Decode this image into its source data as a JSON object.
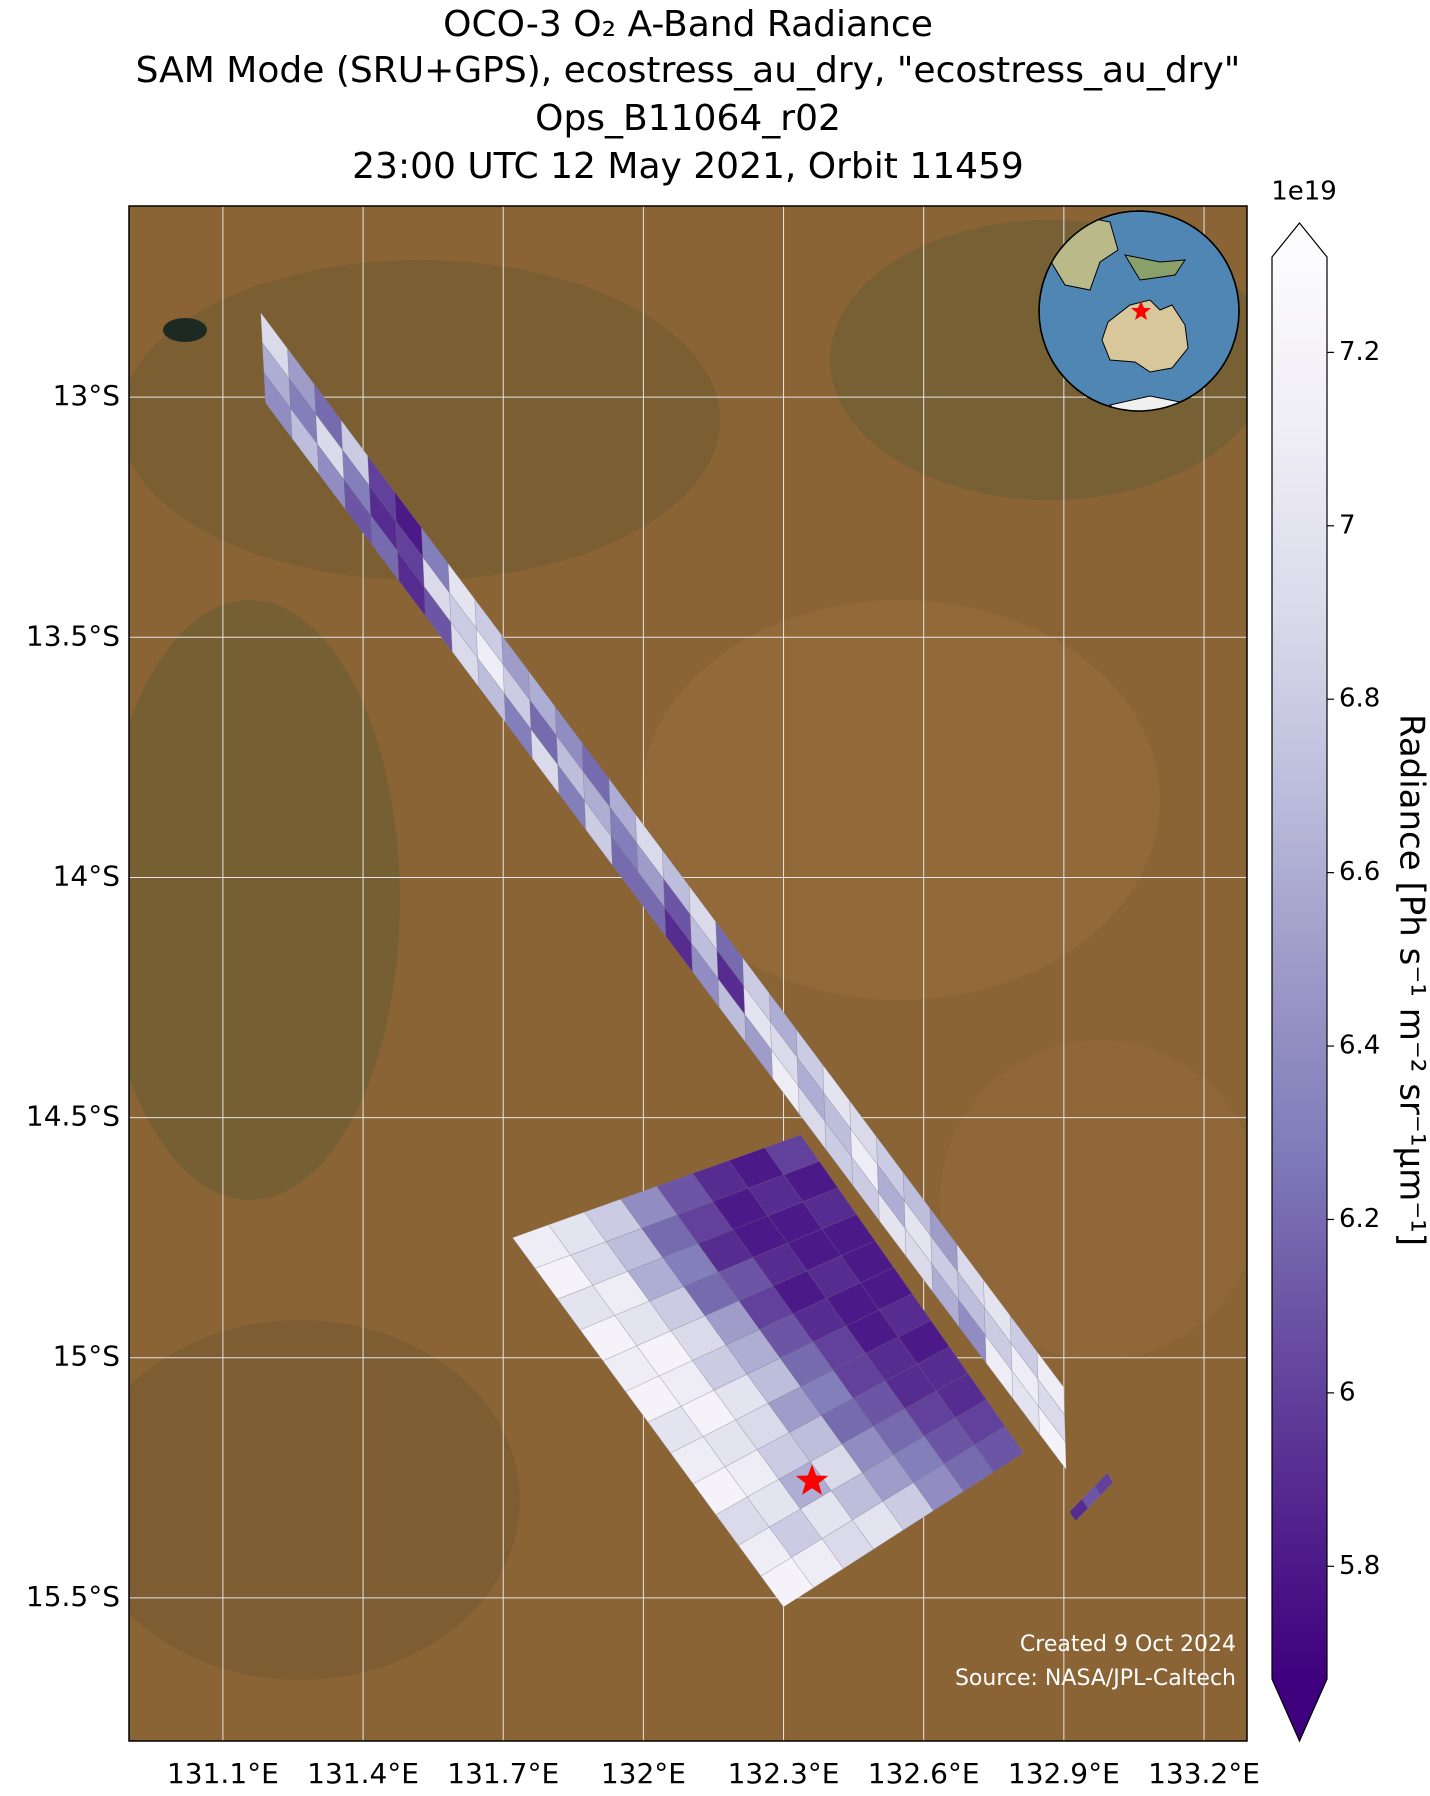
{
  "chart_data": {
    "type": "map",
    "title": [
      "OCO-3 O₂ A-Band Radiance",
      "SAM Mode (SRU+GPS), ecostress_au_dry, \"ecostress_au_dry\"",
      "Ops_B11064_r02",
      "23:00 UTC 12 May 2021, Orbit 11459"
    ],
    "xlim": [
      130.899,
      133.292
    ],
    "ylim": [
      -15.798,
      -12.602
    ],
    "xticks": [
      {
        "value": 131.1,
        "label": "131.1°E"
      },
      {
        "value": 131.4,
        "label": "131.4°E"
      },
      {
        "value": 131.7,
        "label": "131.7°E"
      },
      {
        "value": 132.0,
        "label": "132°E"
      },
      {
        "value": 132.3,
        "label": "132.3°E"
      },
      {
        "value": 132.6,
        "label": "132.6°E"
      },
      {
        "value": 132.9,
        "label": "132.9°E"
      },
      {
        "value": 133.2,
        "label": "133.2°E"
      }
    ],
    "yticks": [
      {
        "value": -13,
        "label": "13°S"
      },
      {
        "value": -13.5,
        "label": "13.5°S"
      },
      {
        "value": -14,
        "label": "14°S"
      },
      {
        "value": -14.5,
        "label": "14.5°S"
      },
      {
        "value": -15,
        "label": "15°S"
      },
      {
        "value": -15.5,
        "label": "15.5°S"
      }
    ],
    "grid": true,
    "colormap": [
      "#3f007d",
      "#54278f",
      "#6a51a3",
      "#807dba",
      "#9e9ac8",
      "#bcbddc",
      "#dadaeb",
      "#efedf5",
      "#fcfbfd"
    ],
    "clim": [
      5.67,
      7.31
    ],
    "cticks": [
      5.8,
      6.0,
      6.2,
      6.4,
      6.6,
      6.8,
      7.0,
      7.2
    ],
    "colorbar_offset": "1e19",
    "colorbar_label": "Radiance [Ph s⁻¹ m⁻² sr⁻¹μm⁻¹]",
    "target": [
      132.361,
      -15.257
    ],
    "target_color": "#ff0000",
    "swaths": [
      {
        "corners": [
          [
            131.181,
            -12.824
          ],
          [
            131.191,
            -13.012
          ],
          [
            132.905,
            -15.233
          ],
          [
            132.9,
            -15.062
          ]
        ],
        "values": [
          [
            6.9,
            6.6,
            6.4
          ],
          [
            6.5,
            6.3,
            6.7
          ],
          [
            6.2,
            6.9,
            6.4
          ],
          [
            6.8,
            6.3,
            6.1
          ],
          [
            6.0,
            5.9,
            6.2
          ],
          [
            5.8,
            6.0,
            5.9
          ],
          [
            6.3,
            6.9,
            6.1
          ],
          [
            7.0,
            6.8,
            6.9
          ],
          [
            6.8,
            7.1,
            6.7
          ],
          [
            6.5,
            6.8,
            6.3
          ],
          [
            6.6,
            6.2,
            6.9
          ],
          [
            6.4,
            6.7,
            6.3
          ],
          [
            6.2,
            6.6,
            6.8
          ],
          [
            6.6,
            6.3,
            6.2
          ],
          [
            6.9,
            6.5,
            6.2
          ],
          [
            6.7,
            6.1,
            5.9
          ],
          [
            6.9,
            6.7,
            6.4
          ],
          [
            6.2,
            5.9,
            6.7
          ],
          [
            6.8,
            7.0,
            6.5
          ],
          [
            6.6,
            6.9,
            7.1
          ],
          [
            6.8,
            6.6,
            6.9
          ],
          [
            7.0,
            6.7,
            6.8
          ],
          [
            6.9,
            7.1,
            6.8
          ],
          [
            6.8,
            6.6,
            7.0
          ],
          [
            6.7,
            7.0,
            6.9
          ],
          [
            6.5,
            6.8,
            6.6
          ],
          [
            6.9,
            6.7,
            6.4
          ],
          [
            7.0,
            6.8,
            7.1
          ],
          [
            6.8,
            7.1,
            7.0
          ],
          [
            7.1,
            6.9,
            7.2
          ]
        ]
      },
      {
        "corners": [
          [
            131.72,
            -14.75
          ],
          [
            132.337,
            -14.536
          ],
          [
            132.814,
            -15.198
          ],
          [
            132.3,
            -15.519
          ]
        ],
        "values": [
          [
            7.1,
            7.0,
            6.8,
            6.4,
            6.1,
            5.9,
            5.8,
            6.0
          ],
          [
            7.2,
            6.9,
            6.7,
            6.2,
            6.0,
            5.8,
            5.9,
            5.8
          ],
          [
            7.0,
            7.1,
            6.6,
            6.3,
            5.9,
            5.8,
            5.8,
            5.9
          ],
          [
            7.2,
            7.0,
            6.8,
            6.2,
            6.1,
            5.9,
            5.8,
            5.8
          ],
          [
            7.1,
            7.2,
            6.9,
            6.5,
            6.0,
            5.8,
            5.9,
            5.8
          ],
          [
            7.2,
            7.1,
            6.8,
            6.6,
            6.1,
            5.9,
            5.8,
            5.8
          ],
          [
            7.0,
            7.2,
            7.0,
            6.7,
            6.2,
            6.0,
            5.8,
            5.9
          ],
          [
            7.1,
            7.0,
            6.9,
            6.5,
            6.3,
            6.0,
            5.9,
            5.8
          ],
          [
            7.2,
            7.1,
            6.8,
            6.7,
            6.2,
            6.1,
            5.9,
            5.9
          ],
          [
            6.9,
            7.0,
            6.6,
            6.9,
            6.4,
            6.2,
            6.0,
            5.9
          ],
          [
            7.1,
            6.8,
            7.0,
            6.7,
            6.5,
            6.3,
            6.1,
            6.0
          ],
          [
            7.2,
            7.1,
            6.9,
            7.0,
            6.8,
            6.4,
            6.2,
            6.1
          ]
        ]
      },
      {
        "corners": [
          [
            132.912,
            -15.321
          ],
          [
            132.993,
            -15.24
          ],
          [
            133.005,
            -15.26
          ],
          [
            132.925,
            -15.34
          ]
        ],
        "values": [
          [
            5.9,
            6.1,
            6.0
          ]
        ]
      }
    ],
    "annotations": [
      "Created 9 Oct 2024",
      "Source: NASA/JPL-Caltech"
    ]
  }
}
